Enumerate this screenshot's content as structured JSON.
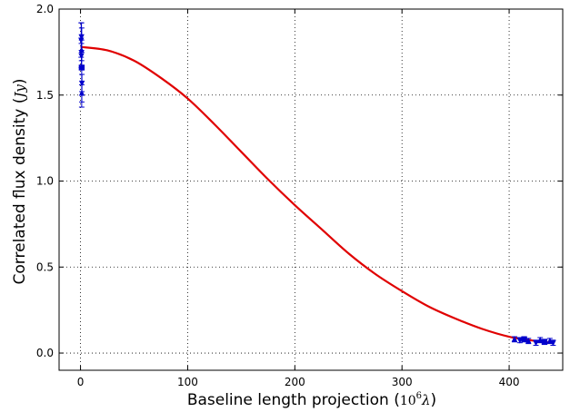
{
  "chart_data": {
    "type": "scatter",
    "xlabel": "Baseline length projection (",
    "xlabel_math": "10",
    "xlabel_math_sup": "6",
    "xlabel_math_lambda": "λ",
    "xlabel_close": ")",
    "ylabel": "Correlated flux density (",
    "ylabel_math": "Jy",
    "ylabel_close": ")",
    "xlim": [
      -20,
      450
    ],
    "ylim": [
      -0.1,
      2.0
    ],
    "xticks": [
      0,
      100,
      200,
      300,
      400
    ],
    "xtick_labels": [
      "0",
      "100",
      "200",
      "300",
      "400"
    ],
    "yticks": [
      0.0,
      0.5,
      1.0,
      1.5,
      2.0
    ],
    "ytick_labels": [
      "0.0",
      "0.5",
      "1.0",
      "1.5",
      "2.0"
    ],
    "grid": true,
    "colors": {
      "points": "#0000cc",
      "fit": "#e00000"
    },
    "series": [
      {
        "kind": "points-with-errorbars",
        "points": [
          {
            "x": 0.6,
            "y": 1.82,
            "err": 0.1,
            "marker": "triangle-down"
          },
          {
            "x": 0.9,
            "y": 1.84,
            "err": 0.08,
            "marker": "triangle-down"
          },
          {
            "x": 1.0,
            "y": 1.76,
            "err": 0.06,
            "marker": "triangle-up"
          },
          {
            "x": 0.8,
            "y": 1.73,
            "err": 0.07,
            "marker": "triangle-down"
          },
          {
            "x": 1.1,
            "y": 1.66,
            "err": 0.23,
            "marker": "square"
          },
          {
            "x": 1.3,
            "y": 1.57,
            "err": 0.05,
            "marker": "triangle-down"
          },
          {
            "x": 1.2,
            "y": 1.51,
            "err": 0.05,
            "marker": "triangle-up"
          },
          {
            "x": 405,
            "y": 0.08,
            "err": 0.015,
            "marker": "triangle-up"
          },
          {
            "x": 410,
            "y": 0.075,
            "err": 0.015,
            "marker": "triangle-down"
          },
          {
            "x": 414,
            "y": 0.08,
            "err": 0.015,
            "marker": "square"
          },
          {
            "x": 418,
            "y": 0.07,
            "err": 0.015,
            "marker": "triangle-up"
          },
          {
            "x": 425,
            "y": 0.06,
            "err": 0.015,
            "marker": "triangle-down"
          },
          {
            "x": 429,
            "y": 0.075,
            "err": 0.015,
            "marker": "triangle-up"
          },
          {
            "x": 433,
            "y": 0.065,
            "err": 0.015,
            "marker": "square"
          },
          {
            "x": 438,
            "y": 0.07,
            "err": 0.015,
            "marker": "triangle-up"
          },
          {
            "x": 441,
            "y": 0.06,
            "err": 0.015,
            "marker": "triangle-down"
          }
        ]
      },
      {
        "kind": "fit-curve",
        "x": [
          0,
          25,
          50,
          75,
          100,
          125,
          150,
          175,
          200,
          225,
          250,
          275,
          300,
          325,
          350,
          375,
          400,
          425,
          440
        ],
        "y": [
          1.78,
          1.76,
          1.7,
          1.6,
          1.48,
          1.33,
          1.17,
          1.01,
          0.86,
          0.72,
          0.58,
          0.46,
          0.36,
          0.27,
          0.2,
          0.14,
          0.095,
          0.07,
          0.06
        ]
      }
    ]
  }
}
